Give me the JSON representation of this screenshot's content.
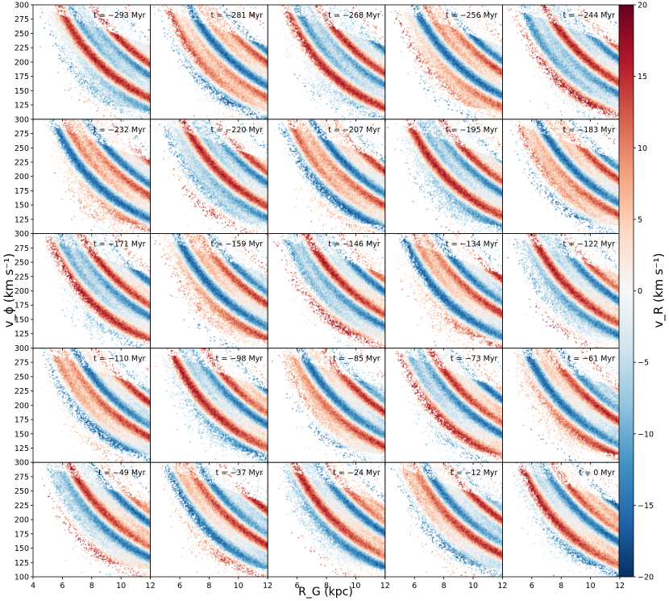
{
  "figure": {
    "ylabel": "v_ϕ (km s⁻¹)",
    "xlabel": "R_G (kpc)",
    "colorbar_label": "v_R (km s⁻¹)"
  },
  "chart_data": {
    "type": "heatmap",
    "grid": {
      "rows": 5,
      "cols": 5
    },
    "x": {
      "label": "R_G (kpc)",
      "range": [
        4,
        12
      ],
      "ticks": [
        4,
        6,
        8,
        10,
        12
      ]
    },
    "y": {
      "label": "v_ϕ (km s⁻¹)",
      "range": [
        100,
        300
      ],
      "ticks": [
        125,
        150,
        175,
        200,
        225,
        250,
        275,
        300
      ],
      "bottom_row_extra_tick": 100
    },
    "colorbar": {
      "label": "v_R (km s⁻¹)",
      "range": [
        -20,
        20
      ],
      "ticks": [
        -20,
        -15,
        -10,
        -5,
        0,
        5,
        10,
        15,
        20
      ],
      "colormap": "RdBu_r"
    },
    "panels": [
      {
        "label": "t = −293 Myr",
        "t_myr": -293
      },
      {
        "label": "t = −281 Myr",
        "t_myr": -281
      },
      {
        "label": "t = −268 Myr",
        "t_myr": -268
      },
      {
        "label": "t = −256 Myr",
        "t_myr": -256
      },
      {
        "label": "t = −244 Myr",
        "t_myr": -244
      },
      {
        "label": "t = −232 Myr",
        "t_myr": -232
      },
      {
        "label": "t = −220 Myr",
        "t_myr": -220
      },
      {
        "label": "t = −207 Myr",
        "t_myr": -207
      },
      {
        "label": "t = −195 Myr",
        "t_myr": -195
      },
      {
        "label": "t = −183 Myr",
        "t_myr": -183
      },
      {
        "label": "t = −171 Myr",
        "t_myr": -171
      },
      {
        "label": "t = −159 Myr",
        "t_myr": -159
      },
      {
        "label": "t = −146 Myr",
        "t_myr": -146
      },
      {
        "label": "t = −134 Myr",
        "t_myr": -134
      },
      {
        "label": "t = −122 Myr",
        "t_myr": -122
      },
      {
        "label": "t = −110 Myr",
        "t_myr": -110
      },
      {
        "label": "t = −98 Myr",
        "t_myr": -98
      },
      {
        "label": "t = −85 Myr",
        "t_myr": -85
      },
      {
        "label": "t = −73 Myr",
        "t_myr": -73
      },
      {
        "label": "t = −61 Myr",
        "t_myr": -61
      },
      {
        "label": "t = −49 Myr",
        "t_myr": -49
      },
      {
        "label": "t = −37 Myr",
        "t_myr": -37
      },
      {
        "label": "t = −24 Myr",
        "t_myr": -24
      },
      {
        "label": "t = −12 Myr",
        "t_myr": -12
      },
      {
        "label": "t = 0 Myr",
        "t_myr": 0
      }
    ]
  }
}
